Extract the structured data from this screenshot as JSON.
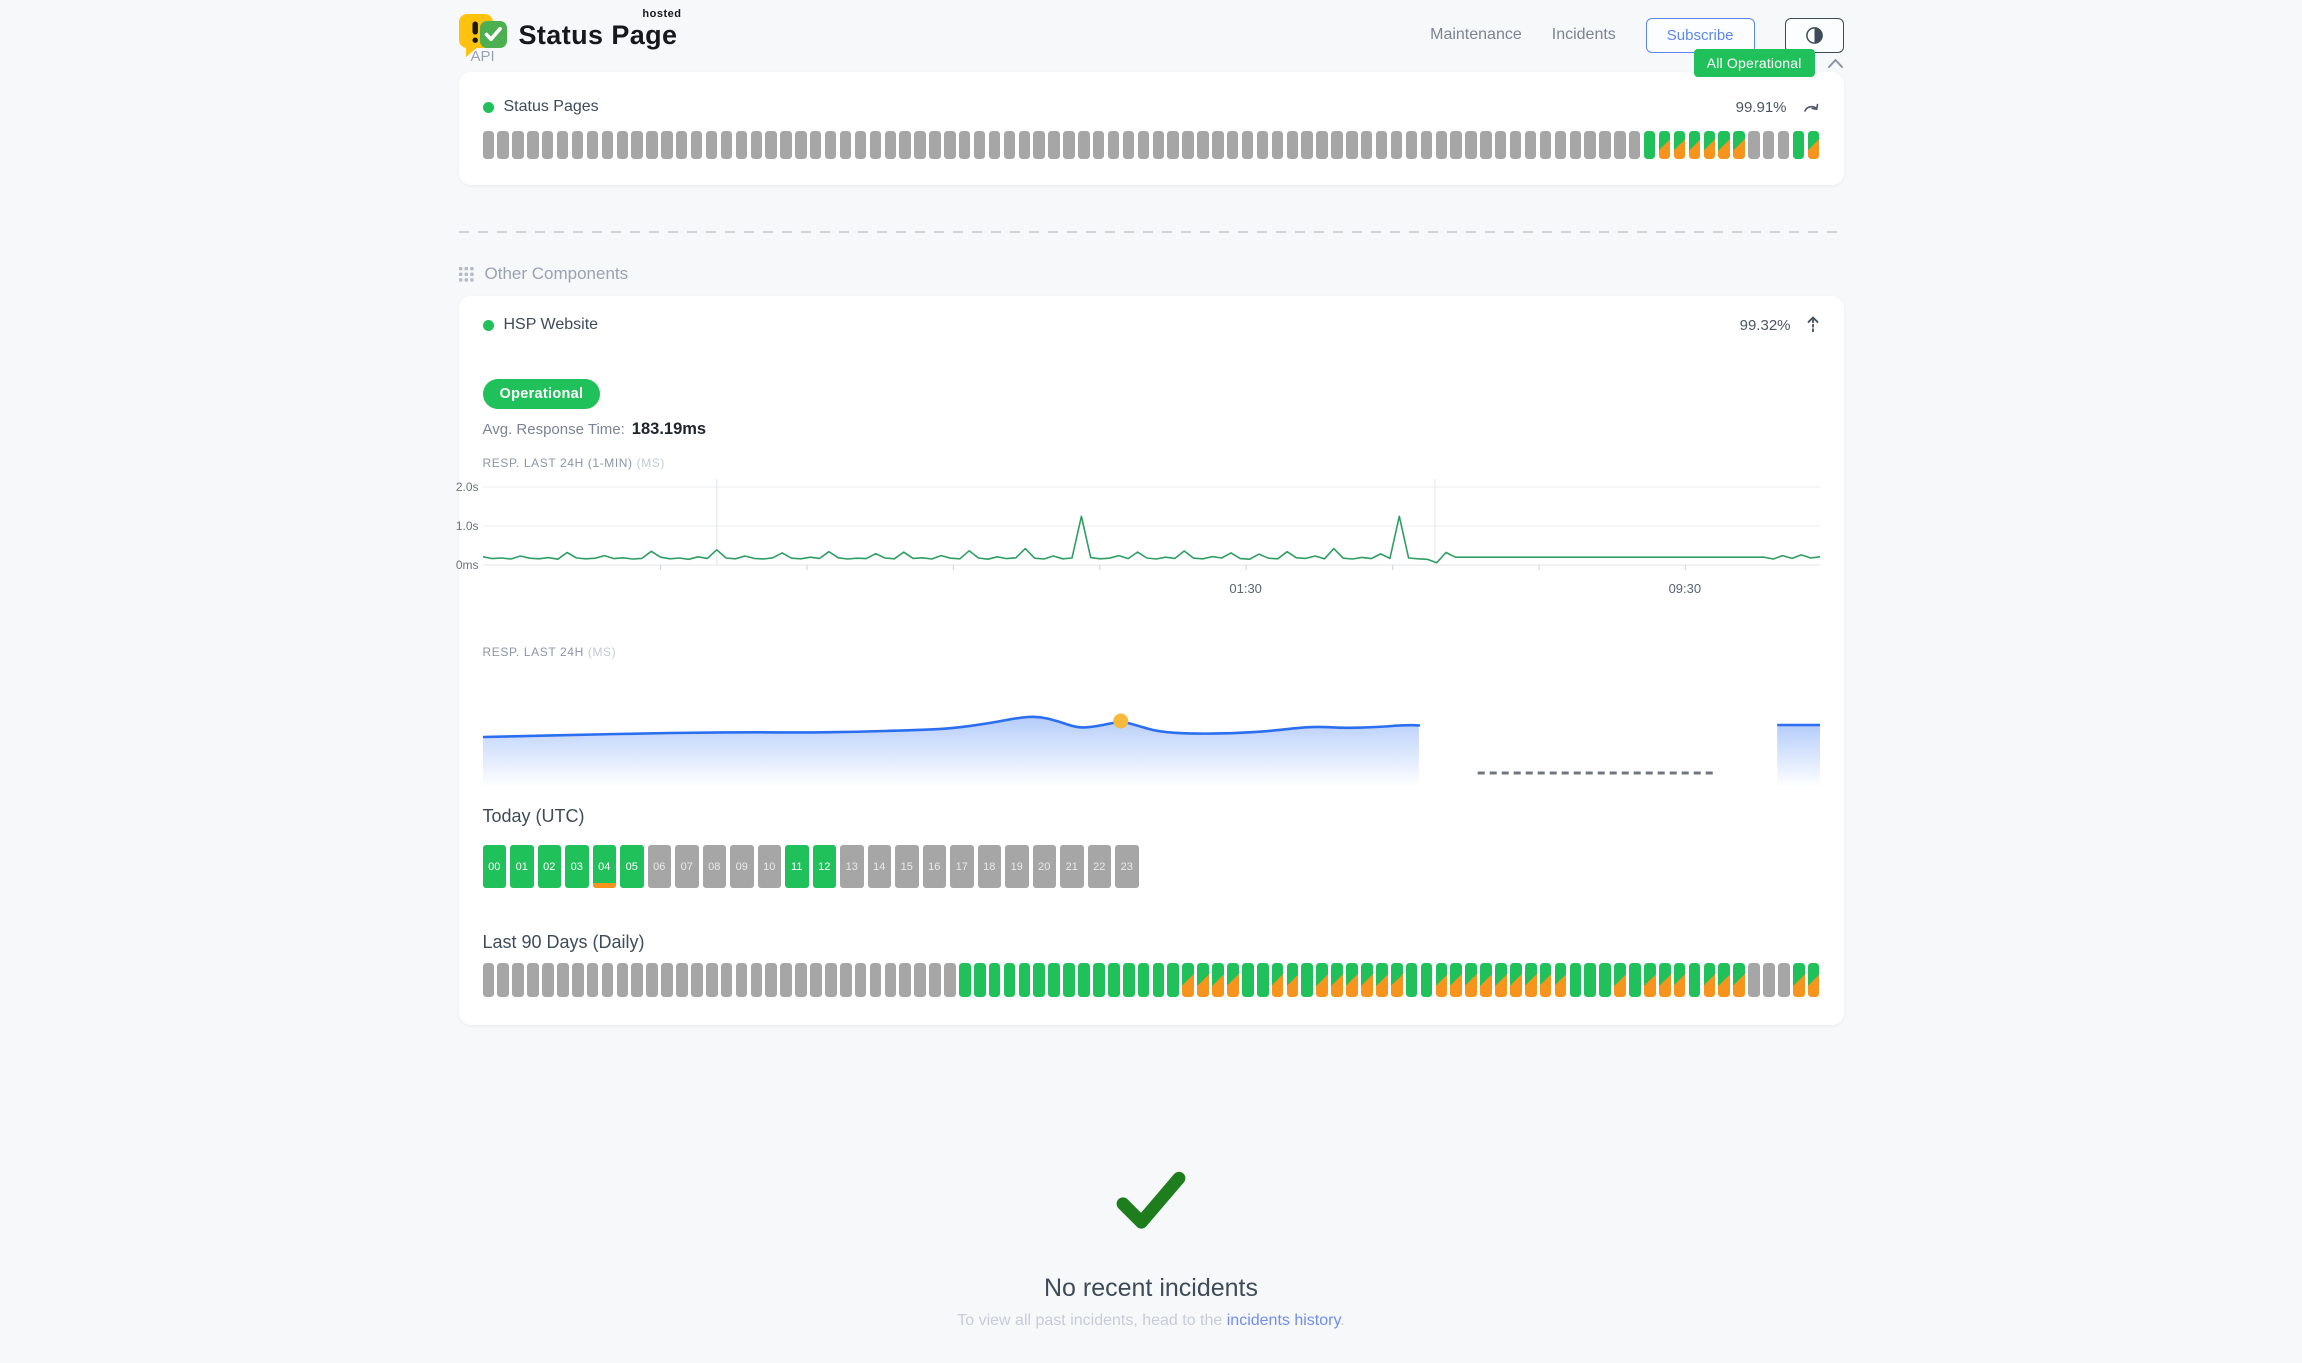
{
  "brand": {
    "title": "Status Page",
    "tag": "hosted"
  },
  "nav": {
    "items": [
      "Maintenance",
      "Incidents"
    ],
    "subscribe_label": "Subscribe"
  },
  "status_banner": {
    "label": "All Operational"
  },
  "api_section": {
    "title": "API",
    "component_name": "Status Pages",
    "uptime": "99.91%",
    "bars": "nnnnnnnnnnnnnnnnnnnnnnnnnnnnnnnnnnnnnnnnnnnnnnnnnnnnnnnnnnnnnnnnnnnnnnnnnnnnnnuddddddnnnud"
  },
  "other_section": {
    "title": "Other Components",
    "component_name": "HSP Website",
    "uptime": "99.32%",
    "status_badge": "Operational",
    "avg_label": "Avg. Response Time:",
    "avg_value": "183.19ms",
    "today_title": "Today (UTC)",
    "last90_title": "Last 90 Days (Daily)",
    "hours": [
      {
        "label": "00",
        "state": "u"
      },
      {
        "label": "01",
        "state": "u"
      },
      {
        "label": "02",
        "state": "u"
      },
      {
        "label": "03",
        "state": "u"
      },
      {
        "label": "04",
        "state": "u",
        "marker": true
      },
      {
        "label": "05",
        "state": "u"
      },
      {
        "label": "06",
        "state": "n"
      },
      {
        "label": "07",
        "state": "n"
      },
      {
        "label": "08",
        "state": "n"
      },
      {
        "label": "09",
        "state": "n"
      },
      {
        "label": "10",
        "state": "n"
      },
      {
        "label": "11",
        "state": "u"
      },
      {
        "label": "12",
        "state": "u"
      },
      {
        "label": "13",
        "state": "n"
      },
      {
        "label": "14",
        "state": "n"
      },
      {
        "label": "15",
        "state": "n"
      },
      {
        "label": "16",
        "state": "n"
      },
      {
        "label": "17",
        "state": "n"
      },
      {
        "label": "18",
        "state": "n"
      },
      {
        "label": "19",
        "state": "n"
      },
      {
        "label": "20",
        "state": "n"
      },
      {
        "label": "21",
        "state": "n"
      },
      {
        "label": "22",
        "state": "n"
      },
      {
        "label": "23",
        "state": "n"
      }
    ],
    "days": "nnnnnnnnnnnnnnnnnnnnnnnnnnnnnnnnuuuuuuuuuuuuuuudddduuddudddddduuddddddddduuududddudddnnndd"
  },
  "incidents": {
    "heading": "No recent incidents",
    "note_prefix": "To view all past incidents, head to the ",
    "link_label": "incidents history",
    "note_suffix": "."
  },
  "colors": {
    "operational_green": "#20C05A",
    "degraded_orange": "#F7941D",
    "no_data_grey": "#A6A6A6",
    "chart_line_green": "#2E9E63",
    "chart_line_blue": "#2B6FF0",
    "marker_yellow": "#F6B93B",
    "check_green": "#1E7D1D",
    "link_blue": "#6F8DF2",
    "accent_blue": "#5B87F2"
  },
  "chart_data": [
    {
      "type": "line",
      "title": "RESP. LAST 24H (1-MIN)",
      "unit": "(MS)",
      "ylabels": [
        "2.0s",
        "1.0s",
        "0ms"
      ],
      "ylim_ms": [
        0,
        2000
      ],
      "x_axis_labels": [
        {
          "f": 0.5708,
          "label": "01:30"
        },
        {
          "f": 0.8993,
          "label": "09:30"
        }
      ],
      "ticks_f": [
        0.1328,
        0.2423,
        0.3518,
        0.4613,
        0.5708,
        0.6803,
        0.7898,
        0.8993
      ],
      "vgrid_f": [
        0.1748,
        0.712
      ],
      "values_ms": [
        210,
        165,
        180,
        155,
        230,
        175,
        160,
        190,
        150,
        320,
        180,
        160,
        175,
        240,
        165,
        185,
        155,
        170,
        350,
        200,
        160,
        180,
        145,
        210,
        170,
        390,
        180,
        160,
        230,
        170,
        155,
        185,
        310,
        175,
        160,
        200,
        170,
        340,
        185,
        155,
        175,
        165,
        290,
        180,
        160,
        330,
        170,
        185,
        155,
        240,
        175,
        160,
        365,
        180,
        150,
        210,
        165,
        185,
        420,
        175,
        155,
        230,
        160,
        180,
        1250,
        190,
        160,
        175,
        240,
        165,
        330,
        180,
        155,
        200,
        170,
        360,
        175,
        160,
        215,
        180,
        310,
        165,
        150,
        280,
        175,
        160,
        340,
        185,
        170,
        230,
        160,
        420,
        175,
        155,
        195,
        165,
        285,
        170,
        1250,
        180,
        160,
        145,
        60,
        320,
        200,
        200,
        200,
        200,
        200,
        200,
        200,
        200,
        200,
        200,
        200,
        200,
        200,
        200,
        200,
        200,
        200,
        200,
        200,
        200,
        200,
        200,
        200,
        200,
        200,
        200,
        200,
        200,
        200,
        200,
        200,
        200,
        200,
        200,
        155,
        240,
        170,
        260,
        180,
        210
      ]
    },
    {
      "type": "area",
      "title": "RESP. LAST 24H",
      "unit": "(MS)",
      "line_points": [
        [
          0,
          120
        ],
        [
          0.04,
          123
        ],
        [
          0.08,
          126
        ],
        [
          0.12,
          129
        ],
        [
          0.16,
          131
        ],
        [
          0.2,
          132
        ],
        [
          0.24,
          131
        ],
        [
          0.28,
          133
        ],
        [
          0.32,
          137
        ],
        [
          0.35,
          141
        ],
        [
          0.38,
          155
        ],
        [
          0.4,
          168
        ],
        [
          0.415,
          172
        ],
        [
          0.43,
          160
        ],
        [
          0.445,
          142
        ],
        [
          0.46,
          147
        ],
        [
          0.477,
          160
        ],
        [
          0.49,
          148
        ],
        [
          0.505,
          133
        ],
        [
          0.53,
          128
        ],
        [
          0.56,
          129
        ],
        [
          0.59,
          135
        ],
        [
          0.62,
          147
        ],
        [
          0.645,
          142
        ],
        [
          0.67,
          145
        ],
        [
          0.69,
          150
        ],
        [
          0.7,
          149
        ]
      ],
      "marker": {
        "f": 0.477,
        "ms": 160
      },
      "gap_dash": {
        "from_f": 0.744,
        "to_f": 0.921
      },
      "tail": {
        "from_f": 0.968,
        "to_f": 1.0,
        "ms": 150
      }
    }
  ]
}
